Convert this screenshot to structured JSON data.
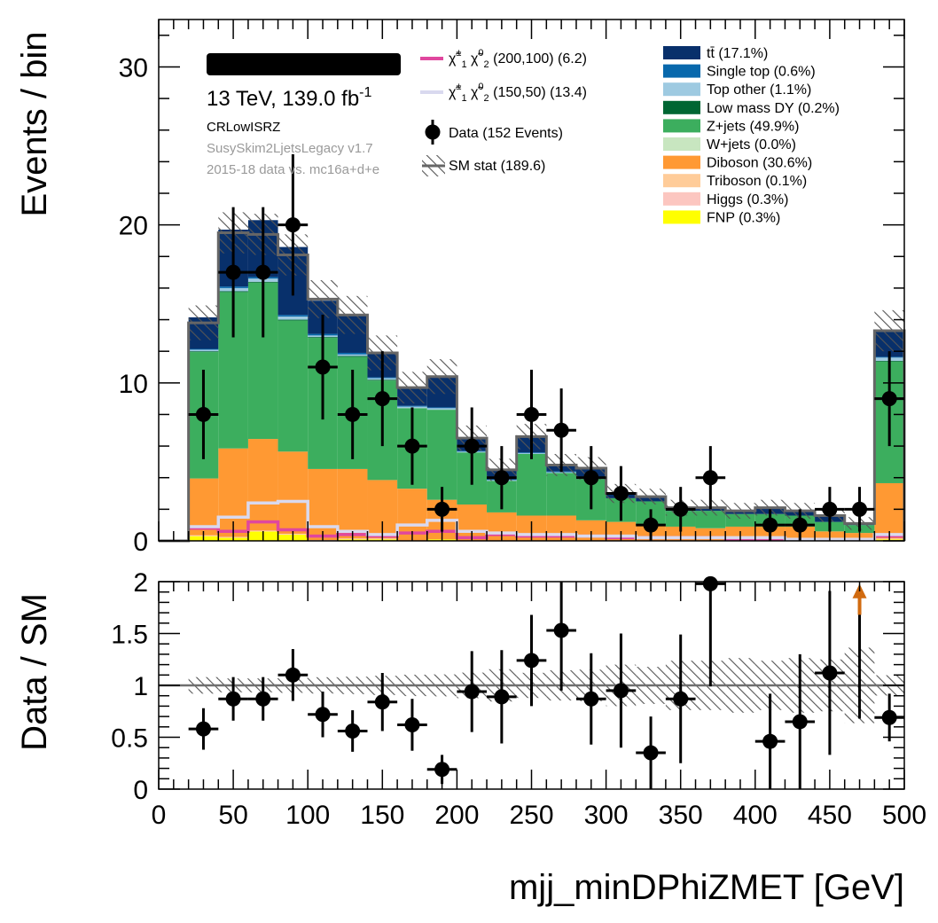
{
  "chart_data": [
    {
      "type": "bar",
      "stacked": true,
      "ylabel": "Events / bin",
      "ylim": [
        0,
        33
      ],
      "yticks": [
        0,
        10,
        20,
        30
      ],
      "bin_edges": [
        0,
        20,
        40,
        60,
        80,
        100,
        120,
        140,
        160,
        180,
        200,
        220,
        240,
        260,
        280,
        300,
        320,
        340,
        360,
        380,
        400,
        420,
        440,
        460,
        480,
        500
      ],
      "stack_series": [
        {
          "name": "FNP (0.3%)",
          "color": "#ffff00",
          "values": [
            0,
            0.3,
            0.2,
            0.6,
            0.4,
            0.0,
            0.1,
            0.1,
            0,
            0.1,
            0,
            0,
            0,
            0,
            0,
            0,
            0,
            0,
            0,
            0,
            0,
            0,
            0,
            0,
            0.1
          ]
        },
        {
          "name": "Higgs (0.3%)",
          "color": "#fcc6c0",
          "values": [
            0,
            0.05,
            0.05,
            0.05,
            0.05,
            0.05,
            0.05,
            0.05,
            0,
            0,
            0,
            0,
            0,
            0,
            0,
            0,
            0,
            0,
            0,
            0,
            0,
            0,
            0,
            0,
            0.05
          ]
        },
        {
          "name": "Triboson (0.1%)",
          "color": "#ffcc99",
          "values": [
            0,
            0,
            0,
            0,
            0,
            0,
            0,
            0,
            0,
            0,
            0,
            0,
            0,
            0,
            0,
            0,
            0,
            0,
            0,
            0,
            0,
            0,
            0,
            0,
            0
          ]
        },
        {
          "name": "Diboson (30.6%)",
          "color": "#ff9933",
          "values": [
            0,
            3.6,
            5.6,
            5.8,
            5.2,
            4.5,
            4.4,
            3.7,
            3.3,
            2.5,
            2.3,
            1.8,
            1.6,
            1.6,
            1.3,
            1.2,
            1.0,
            0.9,
            0.8,
            0.9,
            0.9,
            0.9,
            0.6,
            0.5,
            3.5
          ]
        },
        {
          "name": "W+jets (0.0%)",
          "color": "#c8e6c0",
          "values": [
            0,
            0,
            0,
            0,
            0,
            0,
            0,
            0,
            0,
            0,
            0,
            0,
            0,
            0,
            0,
            0,
            0,
            0,
            0,
            0,
            0,
            0,
            0,
            0,
            0
          ]
        },
        {
          "name": "Z+jets (49.9%)",
          "color": "#3cae5e",
          "values": [
            0,
            8.0,
            9.9,
            9.9,
            8.3,
            8.3,
            7.1,
            6.3,
            5.1,
            5.7,
            3.3,
            2.0,
            3.9,
            2.7,
            2.6,
            1.5,
            1.5,
            1.0,
            1.1,
            0.8,
            0.8,
            0.7,
            0.6,
            0.5,
            7.7
          ]
        },
        {
          "name": "Low mass DY (0.2%)",
          "color": "#006633",
          "values": [
            0,
            0.05,
            0.05,
            0.05,
            0.05,
            0.05,
            0.05,
            0.05,
            0,
            0,
            0,
            0,
            0,
            0,
            0,
            0,
            0,
            0,
            0,
            0,
            0,
            0,
            0,
            0,
            0.05
          ]
        },
        {
          "name": "Top other (1.1%)",
          "color": "#9ecae1",
          "values": [
            0,
            0.1,
            0.2,
            0.2,
            0.2,
            0.1,
            0.1,
            0.1,
            0.1,
            0.1,
            0.05,
            0.05,
            0.05,
            0.05,
            0.05,
            0,
            0,
            0,
            0,
            0,
            0,
            0,
            0,
            0,
            0.2
          ]
        },
        {
          "name": "Single top (0.6%)",
          "color": "#0868ac",
          "values": [
            0,
            0.05,
            0.1,
            0.1,
            0.1,
            0.1,
            0.1,
            0.05,
            0.05,
            0.05,
            0.05,
            0.05,
            0.05,
            0.05,
            0.05,
            0,
            0,
            0,
            0,
            0,
            0,
            0,
            0,
            0,
            0.05
          ]
        },
        {
          "name": "tt̄ (17.1%)",
          "color": "#08306b",
          "values": [
            0,
            2.0,
            3.6,
            3.6,
            4.3,
            2.1,
            2.4,
            1.6,
            1.2,
            1.9,
            0.8,
            0.6,
            1.0,
            0.4,
            0.6,
            0.3,
            0.3,
            0.2,
            0.2,
            0.2,
            0.4,
            0.3,
            0.4,
            0.1,
            1.6
          ]
        }
      ],
      "sm_total": [
        0,
        13.8,
        19.5,
        19.4,
        18.1,
        15.3,
        14.3,
        11.9,
        9.7,
        10.4,
        6.5,
        4.5,
        6.6,
        4.8,
        4.6,
        3.0,
        2.8,
        2.1,
        2.1,
        1.9,
        2.1,
        1.9,
        1.6,
        1.1,
        13.3
      ],
      "sm_stat_error": [
        0,
        1.1,
        1.3,
        1.3,
        1.3,
        1.2,
        1.2,
        1.1,
        1.0,
        1.1,
        0.8,
        0.7,
        0.8,
        0.7,
        0.7,
        0.6,
        0.5,
        0.5,
        0.5,
        0.5,
        0.5,
        0.5,
        0.4,
        0.4,
        1.3
      ],
      "signals": [
        {
          "name": "(200,100) (6.2)",
          "color": "#e0479e",
          "values": [
            0,
            0.8,
            0.6,
            1.2,
            0.7,
            0.3,
            0.4,
            0.3,
            0.5,
            0.6,
            0.2,
            0.4,
            0.3,
            0.3,
            0.3,
            0.2,
            0.2,
            0.2,
            0.2,
            0.1,
            0.1,
            0.1,
            0.1,
            0.1,
            0.3
          ]
        },
        {
          "name": "(150,50) (13.4)",
          "color": "#d9d9ef",
          "values": [
            0,
            0.9,
            1.5,
            2.4,
            2.5,
            0.9,
            0.6,
            0.4,
            1.0,
            1.3,
            0.6,
            0.5,
            0.4,
            0.4,
            0.3,
            0.3,
            0.2,
            0.2,
            0.2,
            0.2,
            0.2,
            0.1,
            0.1,
            0.1,
            0.4
          ]
        }
      ],
      "data_points": {
        "name": "Data (152 Events)",
        "x": [
          30,
          50,
          70,
          90,
          110,
          130,
          150,
          170,
          190,
          210,
          230,
          250,
          270,
          290,
          310,
          330,
          350,
          370,
          410,
          430,
          450,
          470,
          490
        ],
        "y": [
          8,
          17,
          17,
          20,
          11,
          8,
          9,
          6,
          2,
          6,
          4,
          8,
          7,
          4,
          3,
          1,
          2,
          4,
          1,
          1,
          2,
          2,
          9
        ]
      },
      "legend": {
        "sm_stat": "SM stat (189.6)",
        "placement": "top"
      },
      "annotations": {
        "energy": "13 TeV, 139.0 fb",
        "lumi_exp": "-1",
        "region": "CRLowISRZ",
        "software": "SusySkim2LjetsLegacy v1.7",
        "samples": "2015-18 data vs. mc16a+d+e"
      }
    },
    {
      "type": "scatter",
      "xlabel": "mjj_minDPhiZMET [GeV]",
      "ylabel": "Data / SM",
      "xlim": [
        0,
        500
      ],
      "ylim": [
        0,
        2
      ],
      "xticks": [
        0,
        50,
        100,
        150,
        200,
        250,
        300,
        350,
        400,
        450,
        500
      ],
      "yticks": [
        0,
        0.5,
        1,
        1.5,
        2
      ],
      "ytick_labels": [
        "0",
        "0.5",
        "1",
        "1.5",
        "2"
      ],
      "reference_line": 1,
      "ratio_points": {
        "x": [
          30,
          50,
          70,
          90,
          110,
          130,
          150,
          170,
          190,
          210,
          230,
          250,
          270,
          290,
          310,
          330,
          350,
          370,
          410,
          430,
          450,
          490
        ],
        "y": [
          0.58,
          0.87,
          0.87,
          1.1,
          0.72,
          0.56,
          0.84,
          0.62,
          0.19,
          0.94,
          0.89,
          1.24,
          1.53,
          0.87,
          0.95,
          0.35,
          0.87,
          1.98,
          0.46,
          0.65,
          1.12,
          0.69
        ],
        "err": [
          0.2,
          0.21,
          0.21,
          0.25,
          0.22,
          0.2,
          0.28,
          0.25,
          0.14,
          0.39,
          0.45,
          0.44,
          0.58,
          0.44,
          0.55,
          0.35,
          0.62,
          0.99,
          0.46,
          0.65,
          0.79,
          0.23
        ]
      },
      "overflow_arrow_x": 470,
      "overflow_arrow_color": "#d16b10"
    }
  ]
}
